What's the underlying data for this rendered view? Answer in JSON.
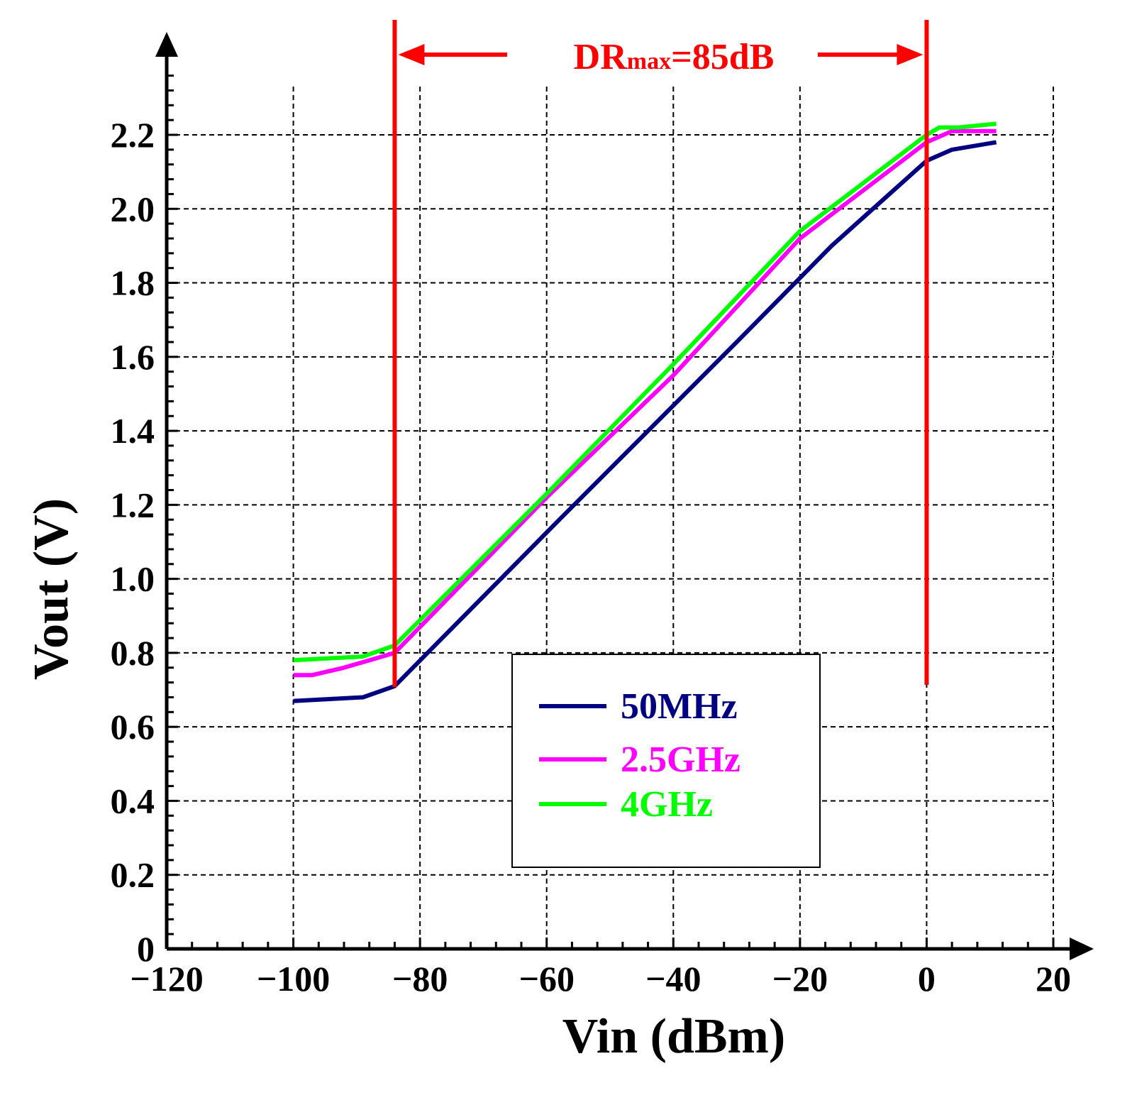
{
  "chart_data": {
    "type": "line",
    "xlabel": "Vin (dBm)",
    "ylabel": "Vout (V)",
    "xlim": [
      -120,
      20
    ],
    "ylim": [
      0,
      2.4
    ],
    "grid": true,
    "x_ticks": [
      -120,
      -100,
      -80,
      -60,
      -40,
      -20,
      0,
      20
    ],
    "x_tick_labels": [
      "−120",
      "−100",
      "−80",
      "−60",
      "−40",
      "−20",
      "0",
      "20"
    ],
    "x_grid": [
      -100,
      -80,
      -60,
      -40,
      -20,
      0,
      20
    ],
    "y_ticks": [
      0,
      0.2,
      0.4,
      0.6,
      0.8,
      1.0,
      1.2,
      1.4,
      1.6,
      1.8,
      2.0,
      2.2
    ],
    "y_tick_labels": [
      "0",
      "0.2",
      "0.4",
      "0.6",
      "0.8",
      "1.0",
      "1.2",
      "1.4",
      "1.6",
      "1.8",
      "2.0",
      "2.2"
    ],
    "y_grid": [
      0.2,
      0.4,
      0.6,
      0.8,
      1.0,
      1.2,
      1.4,
      1.6,
      1.8,
      2.0,
      2.2
    ],
    "series": [
      {
        "name": "50MHz",
        "color": "#000080",
        "x": [
          -100,
          -89,
          -84,
          -58,
          -30,
          -15,
          0,
          4,
          11
        ],
        "y": [
          0.67,
          0.68,
          0.71,
          1.16,
          1.64,
          1.9,
          2.13,
          2.16,
          2.18
        ]
      },
      {
        "name": "2.5GHz",
        "color": "#FF00FF",
        "x": [
          -100,
          -97,
          -92,
          -84,
          -60,
          -40,
          -20,
          0,
          4,
          11
        ],
        "y": [
          0.74,
          0.74,
          0.76,
          0.8,
          1.22,
          1.55,
          1.92,
          2.18,
          2.21,
          2.21
        ]
      },
      {
        "name": "4GHz",
        "color": "#00FF00",
        "x": [
          -100,
          -89,
          -84,
          -60,
          -40,
          -20,
          0,
          2,
          5,
          11
        ],
        "y": [
          0.78,
          0.79,
          0.82,
          1.23,
          1.58,
          1.94,
          2.2,
          2.22,
          2.22,
          2.23
        ]
      }
    ],
    "legend": {
      "position": "center-bottom",
      "entries": [
        "50MHz",
        "2.5GHz",
        "4GHz"
      ]
    },
    "markers": {
      "left_x": -84,
      "right_x": 0,
      "color": "#FF0000"
    },
    "annotation": {
      "main": "DR",
      "subscript": "max",
      "value": "=85dB",
      "color": "#FF0000"
    }
  }
}
